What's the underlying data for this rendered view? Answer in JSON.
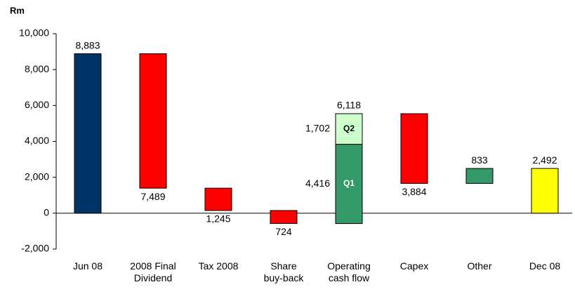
{
  "chart_data": {
    "type": "waterfall",
    "axis_label": "Rm",
    "categories": [
      "Jun 08",
      "2008 Final\nDividend",
      "Tax 2008",
      "Share\nbuy-back",
      "Operating\ncash flow",
      "Capex",
      "Other",
      "Dec 08"
    ],
    "values": [
      8883,
      -7489,
      -1245,
      -724,
      6118,
      -3884,
      833,
      2492
    ],
    "value_labels": [
      "8,883",
      "7,489",
      "1,245",
      "724",
      "6,118",
      "3,884",
      "833",
      "2,492"
    ],
    "total_bars": [
      true,
      false,
      false,
      false,
      false,
      false,
      false,
      true
    ],
    "colors": [
      "#003366",
      "#ff0000",
      "#ff0000",
      "#ff0000",
      "#339966",
      "#ff0000",
      "#339966",
      "#ffff00"
    ],
    "segments": [
      null,
      null,
      null,
      null,
      [
        {
          "name": "Q1",
          "value": 4416,
          "label": "4,416",
          "color": "#339966"
        },
        {
          "name": "Q2",
          "value": 1702,
          "label": "1,702",
          "color": "#ccffcc"
        }
      ],
      null,
      null,
      null
    ],
    "ylim": [
      -2000,
      10000
    ],
    "yticks": [
      {
        "value": -2000,
        "label": "-2,000"
      },
      0,
      {
        "value": 2000,
        "label": "2,000"
      },
      {
        "value": 4000,
        "label": "4,000"
      },
      {
        "value": 6000,
        "label": "6,000"
      },
      {
        "value": 8000,
        "label": "8,000"
      },
      {
        "value": 10000,
        "label": "10,000"
      }
    ]
  }
}
